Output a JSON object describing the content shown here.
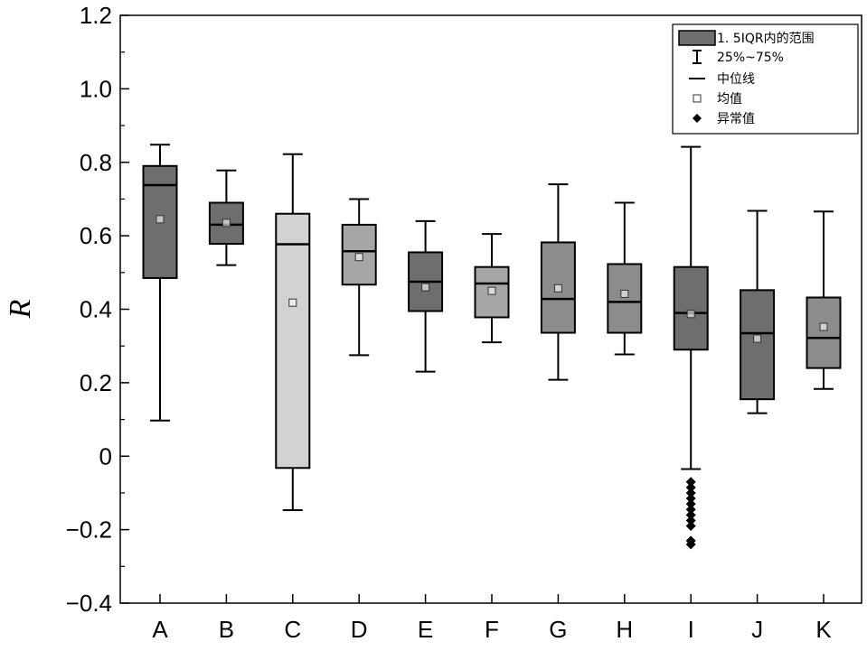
{
  "chart_data": {
    "type": "box",
    "title": "",
    "xlabel": "",
    "ylabel": "R",
    "ylim": [
      -0.4,
      1.2
    ],
    "yticks": [
      1.2,
      1.0,
      0.8,
      0.6,
      0.4,
      0.2,
      0,
      -0.2,
      -0.4
    ],
    "ytick_labels": [
      "1.2",
      "1.0",
      "0.8",
      "0.6",
      "0.4",
      "0.2",
      "0",
      "−0.2",
      "−0.4"
    ],
    "grid": false,
    "legend_position": "top-right",
    "categories": [
      "A",
      "B",
      "C",
      "D",
      "E",
      "F",
      "G",
      "H",
      "I",
      "J",
      "K"
    ],
    "boxes": [
      {
        "label": "A",
        "q1": 0.485,
        "median": 0.738,
        "q3": 0.79,
        "whisker_low": 0.097,
        "whisker_high": 0.848,
        "mean": 0.645,
        "fill": "#6e6e6e",
        "outliers": []
      },
      {
        "label": "B",
        "q1": 0.578,
        "median": 0.63,
        "q3": 0.69,
        "whisker_low": 0.52,
        "whisker_high": 0.778,
        "mean": 0.635,
        "fill": "#6e6e6e",
        "outliers": []
      },
      {
        "label": "C",
        "q1": -0.032,
        "median": 0.577,
        "q3": 0.66,
        "whisker_low": -0.147,
        "whisker_high": 0.822,
        "mean": 0.418,
        "fill": "#d2d2d2",
        "outliers": []
      },
      {
        "label": "D",
        "q1": 0.467,
        "median": 0.558,
        "q3": 0.63,
        "whisker_low": 0.275,
        "whisker_high": 0.7,
        "mean": 0.542,
        "fill": "#a6a6a6",
        "outliers": []
      },
      {
        "label": "E",
        "q1": 0.395,
        "median": 0.475,
        "q3": 0.555,
        "whisker_low": 0.23,
        "whisker_high": 0.64,
        "mean": 0.46,
        "fill": "#6e6e6e",
        "outliers": []
      },
      {
        "label": "F",
        "q1": 0.378,
        "median": 0.47,
        "q3": 0.515,
        "whisker_low": 0.31,
        "whisker_high": 0.605,
        "mean": 0.45,
        "fill": "#a6a6a6",
        "outliers": []
      },
      {
        "label": "G",
        "q1": 0.336,
        "median": 0.428,
        "q3": 0.582,
        "whisker_low": 0.208,
        "whisker_high": 0.74,
        "mean": 0.457,
        "fill": "#8c8c8c",
        "outliers": []
      },
      {
        "label": "H",
        "q1": 0.336,
        "median": 0.42,
        "q3": 0.523,
        "whisker_low": 0.277,
        "whisker_high": 0.69,
        "mean": 0.442,
        "fill": "#8c8c8c",
        "outliers": []
      },
      {
        "label": "I",
        "q1": 0.29,
        "median": 0.39,
        "q3": 0.515,
        "whisker_low": -0.035,
        "whisker_high": 0.842,
        "mean": 0.387,
        "fill": "#6e6e6e",
        "outliers": [
          -0.07,
          -0.085,
          -0.1,
          -0.115,
          -0.13,
          -0.145,
          -0.16,
          -0.175,
          -0.19,
          -0.23,
          -0.24
        ]
      },
      {
        "label": "J",
        "q1": 0.155,
        "median": 0.335,
        "q3": 0.452,
        "whisker_low": 0.117,
        "whisker_high": 0.668,
        "mean": 0.32,
        "fill": "#6e6e6e",
        "outliers": []
      },
      {
        "label": "K",
        "q1": 0.24,
        "median": 0.322,
        "q3": 0.432,
        "whisker_low": 0.183,
        "whisker_high": 0.666,
        "mean": 0.352,
        "fill": "#8c8c8c",
        "outliers": []
      }
    ],
    "legend": [
      {
        "key": "box",
        "label": "1. 5IQR内的范围",
        "fill": "#6e6e6e"
      },
      {
        "key": "whisker",
        "label": "25%~75%"
      },
      {
        "key": "median",
        "label": "中位线"
      },
      {
        "key": "mean",
        "label": "均值"
      },
      {
        "key": "outlier",
        "label": "异常值"
      }
    ]
  }
}
